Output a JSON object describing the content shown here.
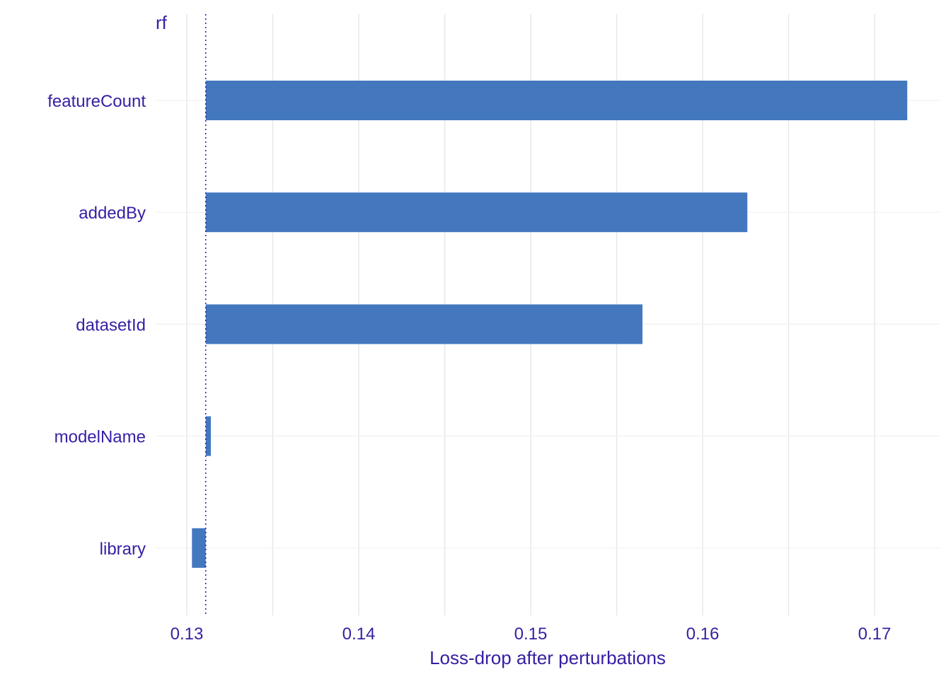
{
  "chart_data": {
    "type": "bar",
    "orientation": "horizontal",
    "panel_title": "rf",
    "xlabel": "Loss-drop after perturbations",
    "ylabel": "",
    "baseline": 0.1311,
    "xlim": [
      0.1278,
      0.1739
    ],
    "x_ticks": [
      0.13,
      0.14,
      0.15,
      0.16,
      0.17
    ],
    "x_tick_labels": [
      "0.13",
      "0.14",
      "0.15",
      "0.16",
      "0.17"
    ],
    "categories": [
      "featureCount",
      "addedBy",
      "datasetId",
      "modelName",
      "library"
    ],
    "values": [
      0.1719,
      0.1626,
      0.1565,
      0.1314,
      0.1303
    ],
    "grid": true,
    "legend": "none",
    "colors": {
      "bar": "#4378bf",
      "grid": "#e6e6e6",
      "text": "#371ea3",
      "baseline": "#371ea3"
    }
  }
}
